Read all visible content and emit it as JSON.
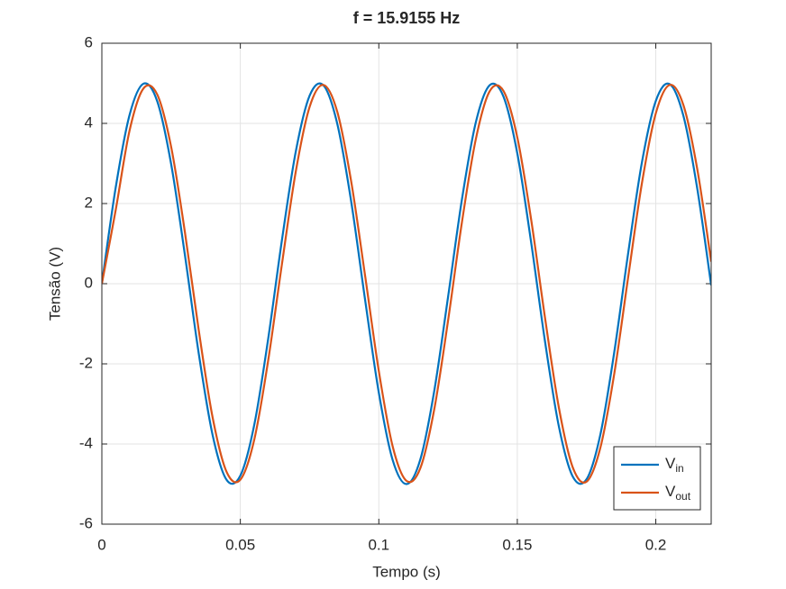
{
  "chart_data": {
    "type": "line",
    "title": "f = 15.9155 Hz",
    "x_label": "Tempo (s)",
    "y_label": "Tensão (V)",
    "x": [
      0,
      0.005,
      0.01,
      0.015,
      0.02,
      0.025,
      0.03,
      0.035,
      0.04,
      0.045,
      0.05,
      0.055,
      0.06,
      0.065,
      0.07,
      0.075,
      0.08,
      0.085,
      0.09,
      0.095,
      0.1,
      0.105,
      0.11,
      0.115,
      0.12,
      0.125,
      0.13,
      0.135,
      0.14,
      0.145,
      0.15,
      0.155,
      0.16,
      0.165,
      0.17,
      0.175,
      0.18,
      0.185,
      0.19,
      0.195,
      0.2,
      0.205,
      0.21,
      0.215,
      0.22
    ],
    "series": [
      {
        "name": "Vin",
        "color": "#0072bd",
        "values": [
          0,
          2.4,
          4.21,
          4.99,
          4.55,
          2.99,
          0.71,
          -1.75,
          -3.78,
          -4.89,
          -4.79,
          -3.53,
          -1.4,
          1.08,
          3.29,
          4.69,
          4.95,
          3.99,
          2.06,
          -0.38,
          -2.72,
          -4.4,
          -5.0,
          -4.38,
          -2.68,
          -0.33,
          2.1,
          4.02,
          4.95,
          4.67,
          3.25,
          1.03,
          -1.44,
          -3.56,
          -4.81,
          -4.88,
          -3.76,
          -1.71,
          0.75,
          3.03,
          4.56,
          4.98,
          4.18,
          2.36,
          -0.04
        ]
      },
      {
        "name": "Vout",
        "color": "#d95319",
        "values": [
          0,
          1.84,
          3.82,
          4.87,
          4.72,
          3.42,
          1.28,
          -1.17,
          -3.34,
          -4.69,
          -4.89,
          -3.9,
          -1.94,
          0.48,
          2.79,
          4.41,
          4.96,
          4.29,
          2.56,
          0.22,
          -2.18,
          -4.06,
          -4.92,
          -4.6,
          -3.14,
          -0.92,
          1.53,
          3.6,
          4.8,
          4.81,
          3.65,
          1.6,
          -0.85,
          -3.09,
          -4.58,
          -4.94,
          -4.09,
          -2.25,
          0.15,
          2.51,
          4.25,
          4.96,
          4.45,
          2.85,
          0.55
        ]
      }
    ],
    "xlim": [
      0,
      0.22
    ],
    "xticks": [
      0,
      0.05,
      0.1,
      0.15,
      0.2
    ],
    "ylim": [
      -6,
      6
    ],
    "yticks": [
      -6,
      -4,
      -2,
      0,
      2,
      4,
      6
    ],
    "grid": true,
    "legend": "lower right"
  }
}
